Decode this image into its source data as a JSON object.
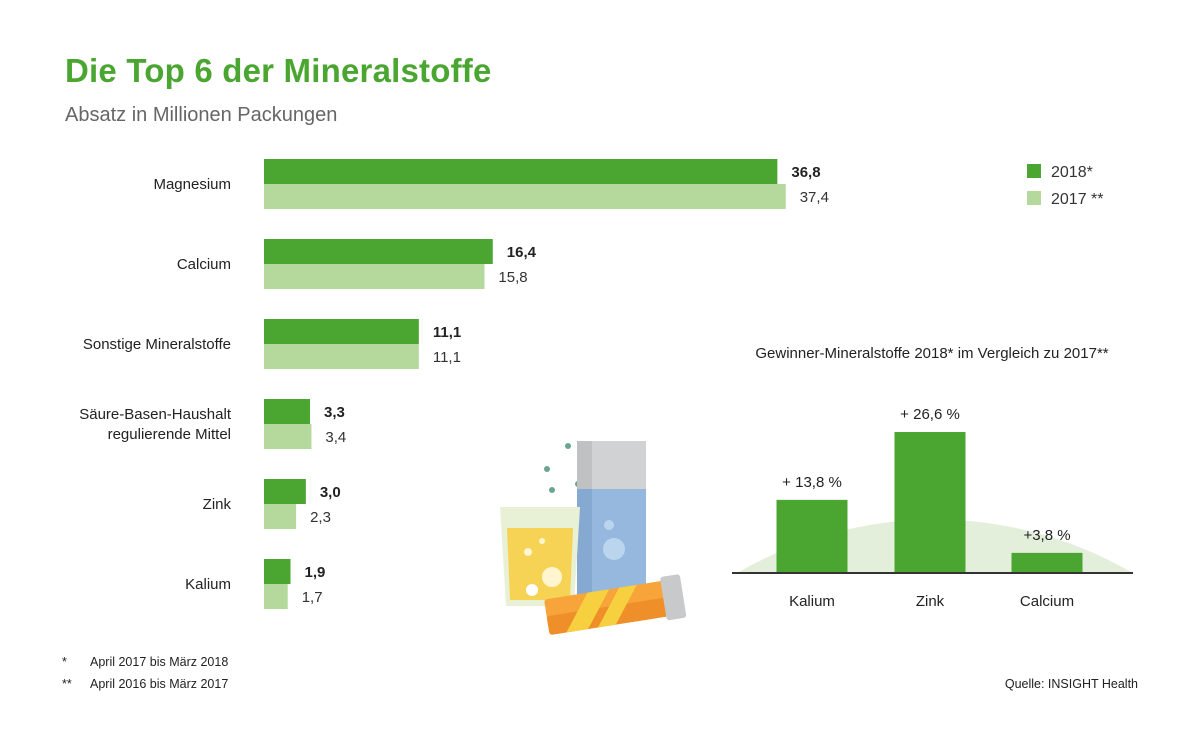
{
  "title": "Die Top 6 der Mineralstoffe",
  "subtitle": "Absatz in Millionen Packungen",
  "chart_data": [
    {
      "type": "bar",
      "orientation": "horizontal",
      "categories": [
        [
          "Magnesium"
        ],
        [
          "Calcium"
        ],
        [
          "Sonstige Mineralstoffe"
        ],
        [
          "Säure-Basen-Haushalt",
          "regulierende Mittel"
        ],
        [
          "Zink"
        ],
        [
          "Kalium"
        ]
      ],
      "series": [
        {
          "name": "2018*",
          "values": [
            36.8,
            16.4,
            11.1,
            3.3,
            3.0,
            1.9
          ],
          "labels": [
            "36,8",
            "16,4",
            "11,1",
            "3,3",
            "3,0",
            "1,9"
          ],
          "color": "#4aa630"
        },
        {
          "name": "2017 **",
          "values": [
            37.4,
            15.8,
            11.1,
            3.4,
            2.3,
            1.7
          ],
          "labels": [
            "37,4",
            "15,8",
            "11,1",
            "3,4",
            "2,3",
            "1,7"
          ],
          "color": "#b5d99d"
        }
      ],
      "legend": "top-right"
    },
    {
      "type": "bar",
      "title": "Gewinner-Mineralstoffe 2018* im Vergleich zu 2017**",
      "categories": [
        "Kalium",
        "Zink",
        "Calcium"
      ],
      "values": [
        13.8,
        26.6,
        3.8
      ],
      "labels": [
        "+ 13,8 %",
        "+ 26,6 %",
        "+3,8 %"
      ],
      "unit": "%",
      "color": "#4aa630",
      "background_color": "#e3efda"
    }
  ],
  "footnotes": [
    {
      "mark": "*",
      "text": "April 2017 bis März 2018"
    },
    {
      "mark": "**",
      "text": "April 2016 bis März 2017"
    }
  ],
  "source": "Quelle: INSIGHT Health"
}
